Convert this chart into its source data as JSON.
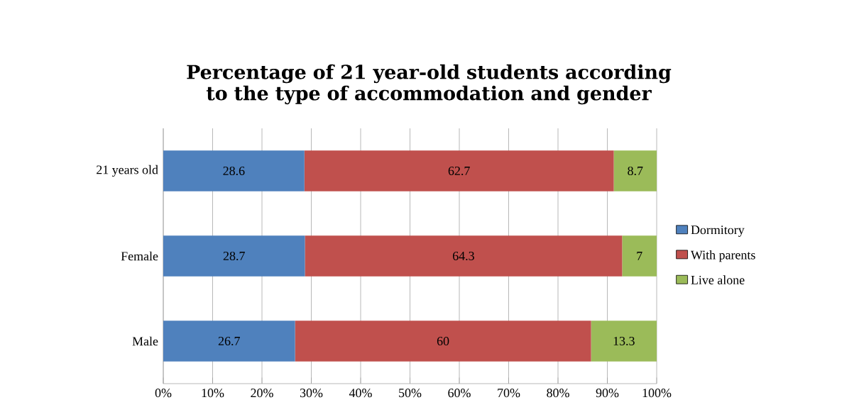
{
  "chart_data": {
    "type": "bar",
    "orientation": "horizontal",
    "stacked": true,
    "title": "Percentage of 21 year-old students according to the type of accommodation and gender",
    "categories": [
      "21 years old",
      "Female",
      "Male"
    ],
    "series": [
      {
        "name": "Dormitory",
        "color": "#4f81bd",
        "values": [
          28.6,
          28.7,
          26.7
        ]
      },
      {
        "name": "With parents",
        "color": "#c0504d",
        "values": [
          62.7,
          64.3,
          60
        ]
      },
      {
        "name": "Live alone",
        "color": "#9bbb59",
        "values": [
          8.7,
          7,
          13.3
        ]
      }
    ],
    "xlim": [
      0,
      100
    ],
    "xticks": [
      {
        "value": 0,
        "label": "0%"
      },
      {
        "value": 10,
        "label": "10%"
      },
      {
        "value": 20,
        "label": "20%"
      },
      {
        "value": 30,
        "label": "30%"
      },
      {
        "value": 40,
        "label": "40%"
      },
      {
        "value": 50,
        "label": "50%"
      },
      {
        "value": 60,
        "label": "60%"
      },
      {
        "value": 70,
        "label": "70%"
      },
      {
        "value": 80,
        "label": "80%"
      },
      {
        "value": 90,
        "label": "90%"
      },
      {
        "value": 100,
        "label": "100%"
      }
    ],
    "grid": "x",
    "legend": "right",
    "data_labels": true
  }
}
